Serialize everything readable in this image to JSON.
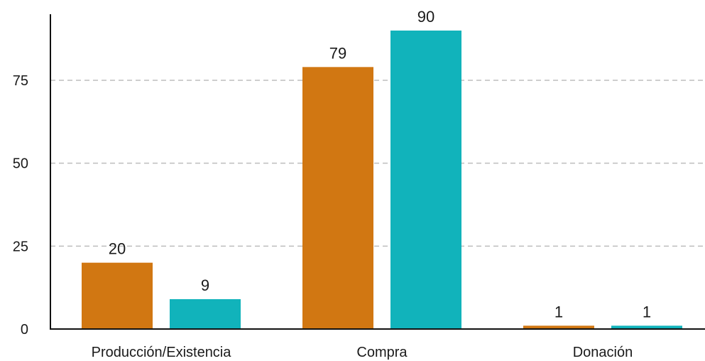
{
  "chart_data": {
    "type": "bar",
    "categories": [
      "Producción/Existencia",
      "Compra",
      "Donación"
    ],
    "series": [
      {
        "values": [
          20,
          79,
          1
        ],
        "color": "#d17712"
      },
      {
        "values": [
          9,
          90,
          1
        ],
        "color": "#11b3bb"
      }
    ],
    "y_ticks": [
      0,
      25,
      50,
      75
    ],
    "ylim": [
      0,
      95
    ],
    "grid": true,
    "data_labels": true
  }
}
